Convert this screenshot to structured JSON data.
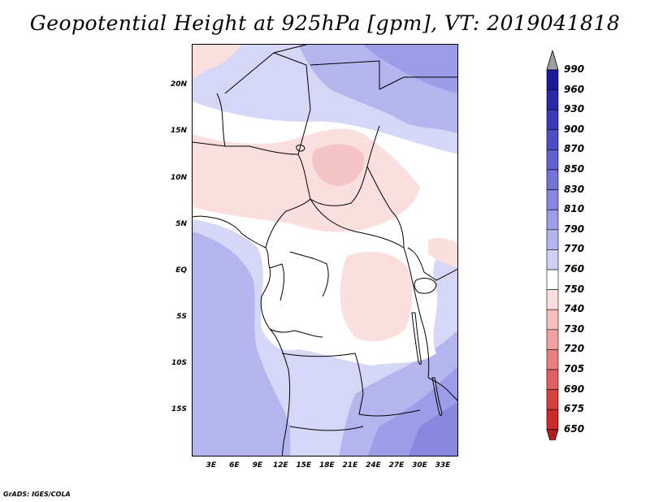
{
  "title": "Geopotential Height at 925hPa [gpm], VT: 2019041818",
  "footer": "GrADS: IGES/COLA",
  "map": {
    "lat_ticks": [
      "20N",
      "15N",
      "10N",
      "5N",
      "EQ",
      "5S",
      "10S",
      "15S"
    ],
    "lat_values": [
      20,
      15,
      10,
      5,
      0,
      -5,
      -10,
      -15
    ],
    "lon_ticks": [
      "3E",
      "6E",
      "9E",
      "12E",
      "15E",
      "18E",
      "21E",
      "24E",
      "27E",
      "30E",
      "33E"
    ],
    "lon_values": [
      3,
      6,
      9,
      12,
      15,
      18,
      21,
      24,
      27,
      30,
      33
    ],
    "lon_range": [
      0.5,
      35
    ],
    "lat_range": [
      -20,
      24.5
    ]
  },
  "legend": {
    "levels": [
      "990",
      "960",
      "930",
      "900",
      "870",
      "850",
      "830",
      "810",
      "790",
      "770",
      "760",
      "750",
      "740",
      "730",
      "720",
      "705",
      "690",
      "675",
      "650"
    ],
    "colors": [
      "#1a1a96",
      "#2a2aa8",
      "#3b3bb8",
      "#4d4dc6",
      "#6060d0",
      "#7373d8",
      "#8787e0",
      "#9c9ce8",
      "#b4b4ef",
      "#d0d0f5",
      "#ffffff",
      "#fbdede",
      "#f7c0c0",
      "#f0a0a0",
      "#e88080",
      "#e06060",
      "#d84040",
      "#cc2a2a",
      "#b41e1e"
    ],
    "top_triangle_color": "#a0a0a0",
    "bottom_triangle_color": "#b41e1e"
  },
  "field_colors": {
    "c790": "#b4b4ef",
    "c770": "#d6d6f7",
    "c760": "#ffffff",
    "c750": "#fbdede",
    "c740": "#f5c4c4",
    "c810": "#9c9ce8",
    "c830": "#8787e0"
  }
}
